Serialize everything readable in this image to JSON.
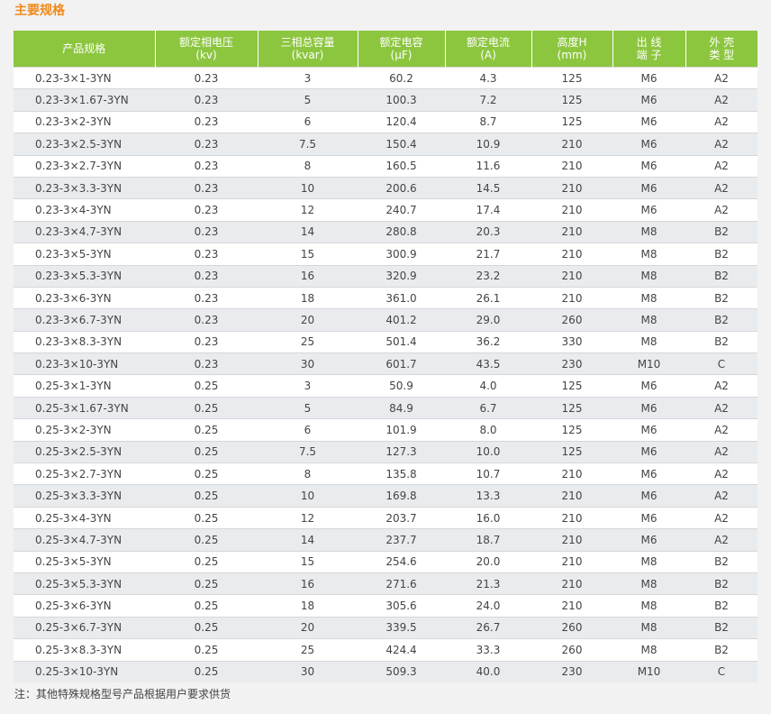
{
  "title": "主要规格",
  "columns": [
    "产品规格",
    "额定相电压\n(kv)",
    "三相总容量\n(kvar)",
    "额定电容\n(μF)",
    "额定电流\n(A)",
    "高度H\n(mm)",
    "出 线\n端 子",
    "外 壳\n类 型"
  ],
  "rows": [
    [
      "0.23-3×1-3YN",
      "0.23",
      "3",
      "60.2",
      "4.3",
      "125",
      "M6",
      "A2"
    ],
    [
      "0.23-3×1.67-3YN",
      "0.23",
      "5",
      "100.3",
      "7.2",
      "125",
      "M6",
      "A2"
    ],
    [
      "0.23-3×2-3YN",
      "0.23",
      "6",
      "120.4",
      "8.7",
      "125",
      "M6",
      "A2"
    ],
    [
      "0.23-3×2.5-3YN",
      "0.23",
      "7.5",
      "150.4",
      "10.9",
      "210",
      "M6",
      "A2"
    ],
    [
      "0.23-3×2.7-3YN",
      "0.23",
      "8",
      "160.5",
      "11.6",
      "210",
      "M6",
      "A2"
    ],
    [
      "0.23-3×3.3-3YN",
      "0.23",
      "10",
      "200.6",
      "14.5",
      "210",
      "M6",
      "A2"
    ],
    [
      "0.23-3×4-3YN",
      "0.23",
      "12",
      "240.7",
      "17.4",
      "210",
      "M6",
      "A2"
    ],
    [
      "0.23-3×4.7-3YN",
      "0.23",
      "14",
      "280.8",
      "20.3",
      "210",
      "M8",
      "B2"
    ],
    [
      "0.23-3×5-3YN",
      "0.23",
      "15",
      "300.9",
      "21.7",
      "210",
      "M8",
      "B2"
    ],
    [
      "0.23-3×5.3-3YN",
      "0.23",
      "16",
      "320.9",
      "23.2",
      "210",
      "M8",
      "B2"
    ],
    [
      "0.23-3×6-3YN",
      "0.23",
      "18",
      "361.0",
      "26.1",
      "210",
      "M8",
      "B2"
    ],
    [
      "0.23-3×6.7-3YN",
      "0.23",
      "20",
      "401.2",
      "29.0",
      "260",
      "M8",
      "B2"
    ],
    [
      "0.23-3×8.3-3YN",
      "0.23",
      "25",
      "501.4",
      "36.2",
      "330",
      "M8",
      "B2"
    ],
    [
      "0.23-3×10-3YN",
      "0.23",
      "30",
      "601.7",
      "43.5",
      "230",
      "M10",
      "C"
    ],
    [
      "0.25-3×1-3YN",
      "0.25",
      "3",
      "50.9",
      "4.0",
      "125",
      "M6",
      "A2"
    ],
    [
      "0.25-3×1.67-3YN",
      "0.25",
      "5",
      "84.9",
      "6.7",
      "125",
      "M6",
      "A2"
    ],
    [
      "0.25-3×2-3YN",
      "0.25",
      "6",
      "101.9",
      "8.0",
      "125",
      "M6",
      "A2"
    ],
    [
      "0.25-3×2.5-3YN",
      "0.25",
      "7.5",
      "127.3",
      "10.0",
      "125",
      "M6",
      "A2"
    ],
    [
      "0.25-3×2.7-3YN",
      "0.25",
      "8",
      "135.8",
      "10.7",
      "210",
      "M6",
      "A2"
    ],
    [
      "0.25-3×3.3-3YN",
      "0.25",
      "10",
      "169.8",
      "13.3",
      "210",
      "M6",
      "A2"
    ],
    [
      "0.25-3×4-3YN",
      "0.25",
      "12",
      "203.7",
      "16.0",
      "210",
      "M6",
      "A2"
    ],
    [
      "0.25-3×4.7-3YN",
      "0.25",
      "14",
      "237.7",
      "18.7",
      "210",
      "M6",
      "A2"
    ],
    [
      "0.25-3×5-3YN",
      "0.25",
      "15",
      "254.6",
      "20.0",
      "210",
      "M8",
      "B2"
    ],
    [
      "0.25-3×5.3-3YN",
      "0.25",
      "16",
      "271.6",
      "21.3",
      "210",
      "M8",
      "B2"
    ],
    [
      "0.25-3×6-3YN",
      "0.25",
      "18",
      "305.6",
      "24.0",
      "210",
      "M8",
      "B2"
    ],
    [
      "0.25-3×6.7-3YN",
      "0.25",
      "20",
      "339.5",
      "26.7",
      "260",
      "M8",
      "B2"
    ],
    [
      "0.25-3×8.3-3YN",
      "0.25",
      "25",
      "424.4",
      "33.3",
      "260",
      "M8",
      "B2"
    ],
    [
      "0.25-3×10-3YN",
      "0.25",
      "30",
      "509.3",
      "40.0",
      "230",
      "M10",
      "C"
    ]
  ],
  "note": "注：其他特殊规格型号产品根据用户要求供货",
  "colors": {
    "header_bg": "#8cc63f",
    "title": "#f08a1c",
    "stripe": "#e9ecef"
  }
}
